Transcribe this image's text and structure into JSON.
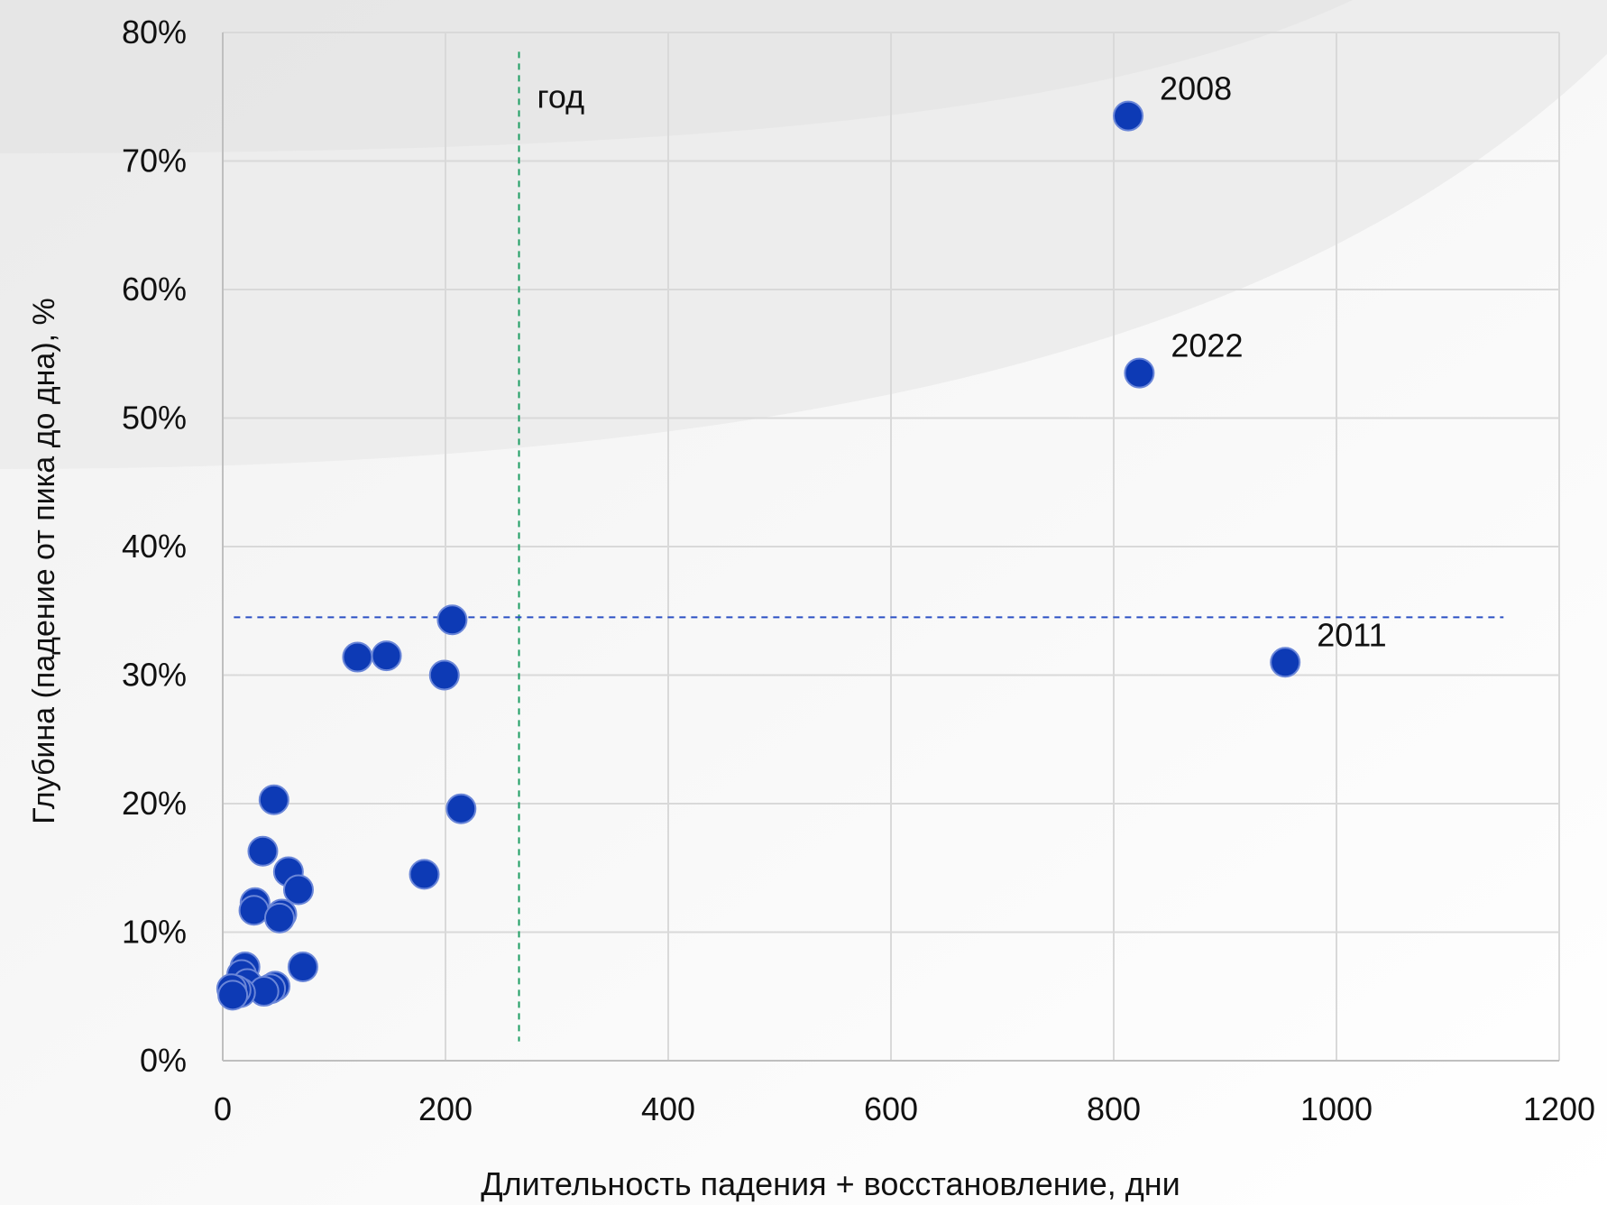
{
  "chart_data": {
    "type": "scatter",
    "title": "",
    "xlabel": "Длительность падения + восстановление, дни",
    "ylabel": "Глубина (падение от пика до дна), %",
    "xlim": [
      0,
      1200
    ],
    "ylim": [
      0,
      80
    ],
    "x_ticks": [
      0,
      200,
      400,
      600,
      800,
      1000,
      1200
    ],
    "y_ticks": [
      0,
      10,
      20,
      30,
      40,
      50,
      60,
      70,
      80
    ],
    "y_tick_labels": [
      "0%",
      "10%",
      "20%",
      "30%",
      "40%",
      "50%",
      "60%",
      "70%",
      "80%"
    ],
    "x_tick_labels": [
      "0",
      "200",
      "400",
      "600",
      "800",
      "1000",
      "1200"
    ],
    "grid": true,
    "legend": "none",
    "colors": {
      "point": "#0d3ab5",
      "point_edge": "#6a86d8",
      "vline": "#1e9e63",
      "hline": "#2a4fc4",
      "grid": "#d9d9d9"
    },
    "points": [
      {
        "x": 813,
        "y": 73.5,
        "label": "2008"
      },
      {
        "x": 823,
        "y": 53.5,
        "label": "2022"
      },
      {
        "x": 954,
        "y": 31.0,
        "label": "2011"
      },
      {
        "x": 206,
        "y": 34.3
      },
      {
        "x": 121,
        "y": 31.4
      },
      {
        "x": 147,
        "y": 31.5
      },
      {
        "x": 199,
        "y": 30.0
      },
      {
        "x": 214,
        "y": 19.6
      },
      {
        "x": 181,
        "y": 14.5
      },
      {
        "x": 46,
        "y": 20.3
      },
      {
        "x": 36,
        "y": 16.3
      },
      {
        "x": 59,
        "y": 14.7
      },
      {
        "x": 68,
        "y": 13.3
      },
      {
        "x": 29,
        "y": 12.3
      },
      {
        "x": 28,
        "y": 11.7
      },
      {
        "x": 53,
        "y": 11.4
      },
      {
        "x": 51,
        "y": 11.1
      },
      {
        "x": 72,
        "y": 7.3
      },
      {
        "x": 20,
        "y": 7.3
      },
      {
        "x": 17,
        "y": 6.7
      },
      {
        "x": 22,
        "y": 6.0
      },
      {
        "x": 47,
        "y": 5.8
      },
      {
        "x": 43,
        "y": 5.6
      },
      {
        "x": 37,
        "y": 5.4
      },
      {
        "x": 16,
        "y": 5.3
      },
      {
        "x": 12,
        "y": 5.5
      },
      {
        "x": 8,
        "y": 5.6
      },
      {
        "x": 9,
        "y": 5.1
      }
    ],
    "reference_lines": [
      {
        "orientation": "vertical",
        "x": 266,
        "y_from": 1.5,
        "y_to": 78.5,
        "label": "год",
        "style": "dashed"
      },
      {
        "orientation": "horizontal",
        "y": 34.5,
        "x_from": 10,
        "x_to": 1150,
        "style": "dashed"
      }
    ]
  }
}
